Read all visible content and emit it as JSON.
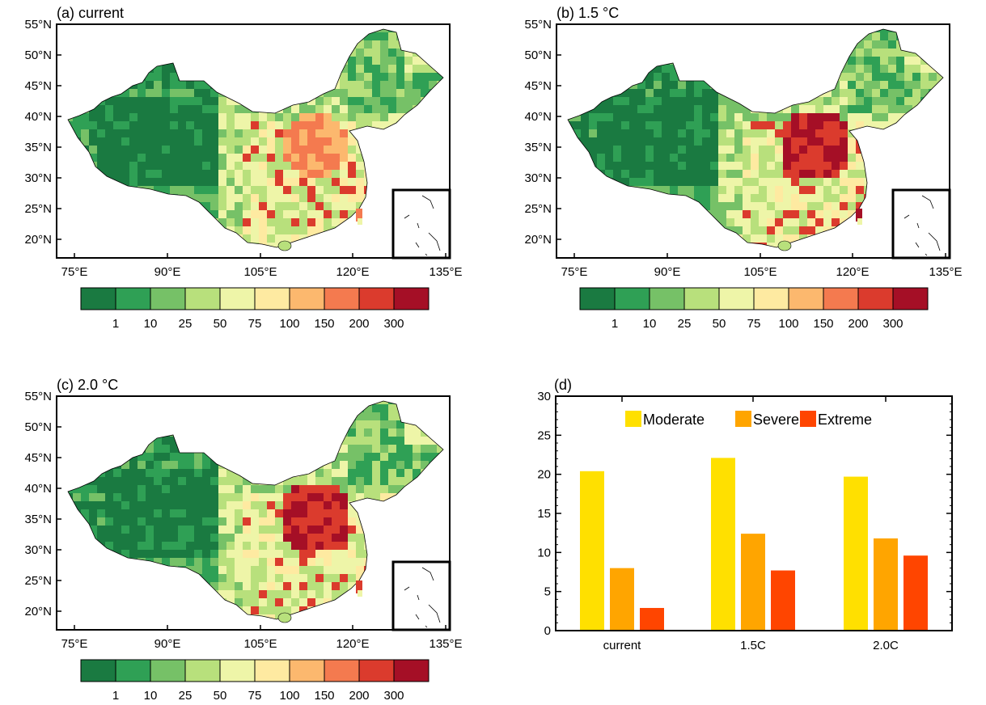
{
  "panels": [
    {
      "title": "(a) current",
      "lat_ticks": [
        "55°N",
        "50°N",
        "45°N",
        "40°N",
        "35°N",
        "30°N",
        "25°N",
        "20°N"
      ],
      "lon_ticks": [
        "75°E",
        "90°E",
        "105°E",
        "120°E",
        "135°E"
      ],
      "colorbar_labels": [
        "1",
        "10",
        "25",
        "50",
        "75",
        "100",
        "150",
        "200",
        "300"
      ]
    },
    {
      "title": "(b) 1.5 °C",
      "lat_ticks": [
        "55°N",
        "50°N",
        "45°N",
        "40°N",
        "35°N",
        "30°N",
        "25°N",
        "20°N"
      ],
      "lon_ticks": [
        "75°E",
        "90°E",
        "105°E",
        "120°E",
        "135°E"
      ],
      "colorbar_labels": [
        "1",
        "10",
        "25",
        "50",
        "75",
        "100",
        "150",
        "200",
        "300"
      ]
    },
    {
      "title": "(c) 2.0 °C",
      "lat_ticks": [
        "55°N",
        "50°N",
        "45°N",
        "40°N",
        "35°N",
        "30°N",
        "25°N",
        "20°N"
      ],
      "lon_ticks": [
        "75°E",
        "90°E",
        "105°E",
        "120°E",
        "135°E"
      ],
      "colorbar_labels": [
        "1",
        "10",
        "25",
        "50",
        "75",
        "100",
        "150",
        "200",
        "300"
      ]
    }
  ],
  "colorbar_colors": [
    "#1a7a41",
    "#2fa055",
    "#76c167",
    "#b8e07c",
    "#eef5a8",
    "#feeaa1",
    "#fcb86e",
    "#f47a4f",
    "#db3b2d",
    "#a50f26"
  ],
  "chart_data": [
    {
      "type": "heatmap",
      "panel": "(a) current",
      "description_level": "map",
      "lon_range": [
        72,
        136
      ],
      "lat_range": [
        17,
        55
      ],
      "bins": [
        1,
        10,
        25,
        50,
        75,
        100,
        150,
        200,
        300
      ]
    },
    {
      "type": "heatmap",
      "panel": "(b) 1.5 °C",
      "lon_range": [
        72,
        136
      ],
      "lat_range": [
        17,
        55
      ],
      "bins": [
        1,
        10,
        25,
        50,
        75,
        100,
        150,
        200,
        300
      ]
    },
    {
      "type": "heatmap",
      "panel": "(c) 2.0 °C",
      "lon_range": [
        72,
        136
      ],
      "lat_range": [
        17,
        55
      ],
      "bins": [
        1,
        10,
        25,
        50,
        75,
        100,
        150,
        200,
        300
      ]
    },
    {
      "type": "bar",
      "title": "(d)",
      "categories": [
        "current",
        "1.5C",
        "2.0C"
      ],
      "series": [
        {
          "name": "Moderate",
          "color": "#ffe000",
          "values": [
            20.4,
            22.1,
            19.7
          ]
        },
        {
          "name": "Severe",
          "color": "#ffa500",
          "values": [
            8.0,
            12.4,
            11.8
          ]
        },
        {
          "name": "Extreme",
          "color": "#ff4500",
          "values": [
            2.9,
            7.7,
            9.6
          ]
        }
      ],
      "ylim": [
        0,
        30
      ],
      "yticks": [
        0,
        5,
        10,
        15,
        20,
        25,
        30
      ],
      "legend_position": "top-center"
    }
  ]
}
